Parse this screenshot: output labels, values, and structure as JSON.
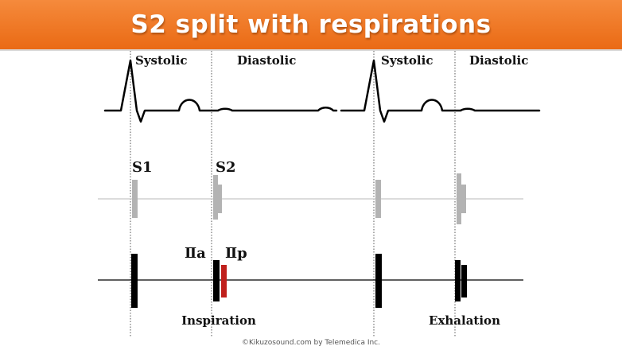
{
  "title": "S2 split with respirations",
  "phase_labels": {
    "systolic_1": "Systolic",
    "diastolic_1": "Diastolic",
    "systolic_2": "Systolic",
    "diastolic_2": "Diastolic"
  },
  "sound_labels": {
    "s1": "S1",
    "s2": "S2",
    "aortic": "Ⅱa",
    "pulmonic": "Ⅱp"
  },
  "respiration_labels": {
    "inspiration": "Inspiration",
    "exhalation": "Exhalation"
  },
  "credit": "©Kikuzosound.com by Telemedica Inc.",
  "colors": {
    "title_bar": "#ef7b28",
    "title_text": "#ffffff",
    "ecg_trace": "#000000",
    "normal_sound_marks": "#b3b3b3",
    "split_sound_marks": "#000000",
    "pulmonic_component": "#c0201c",
    "guide_lines": "#555555"
  }
}
